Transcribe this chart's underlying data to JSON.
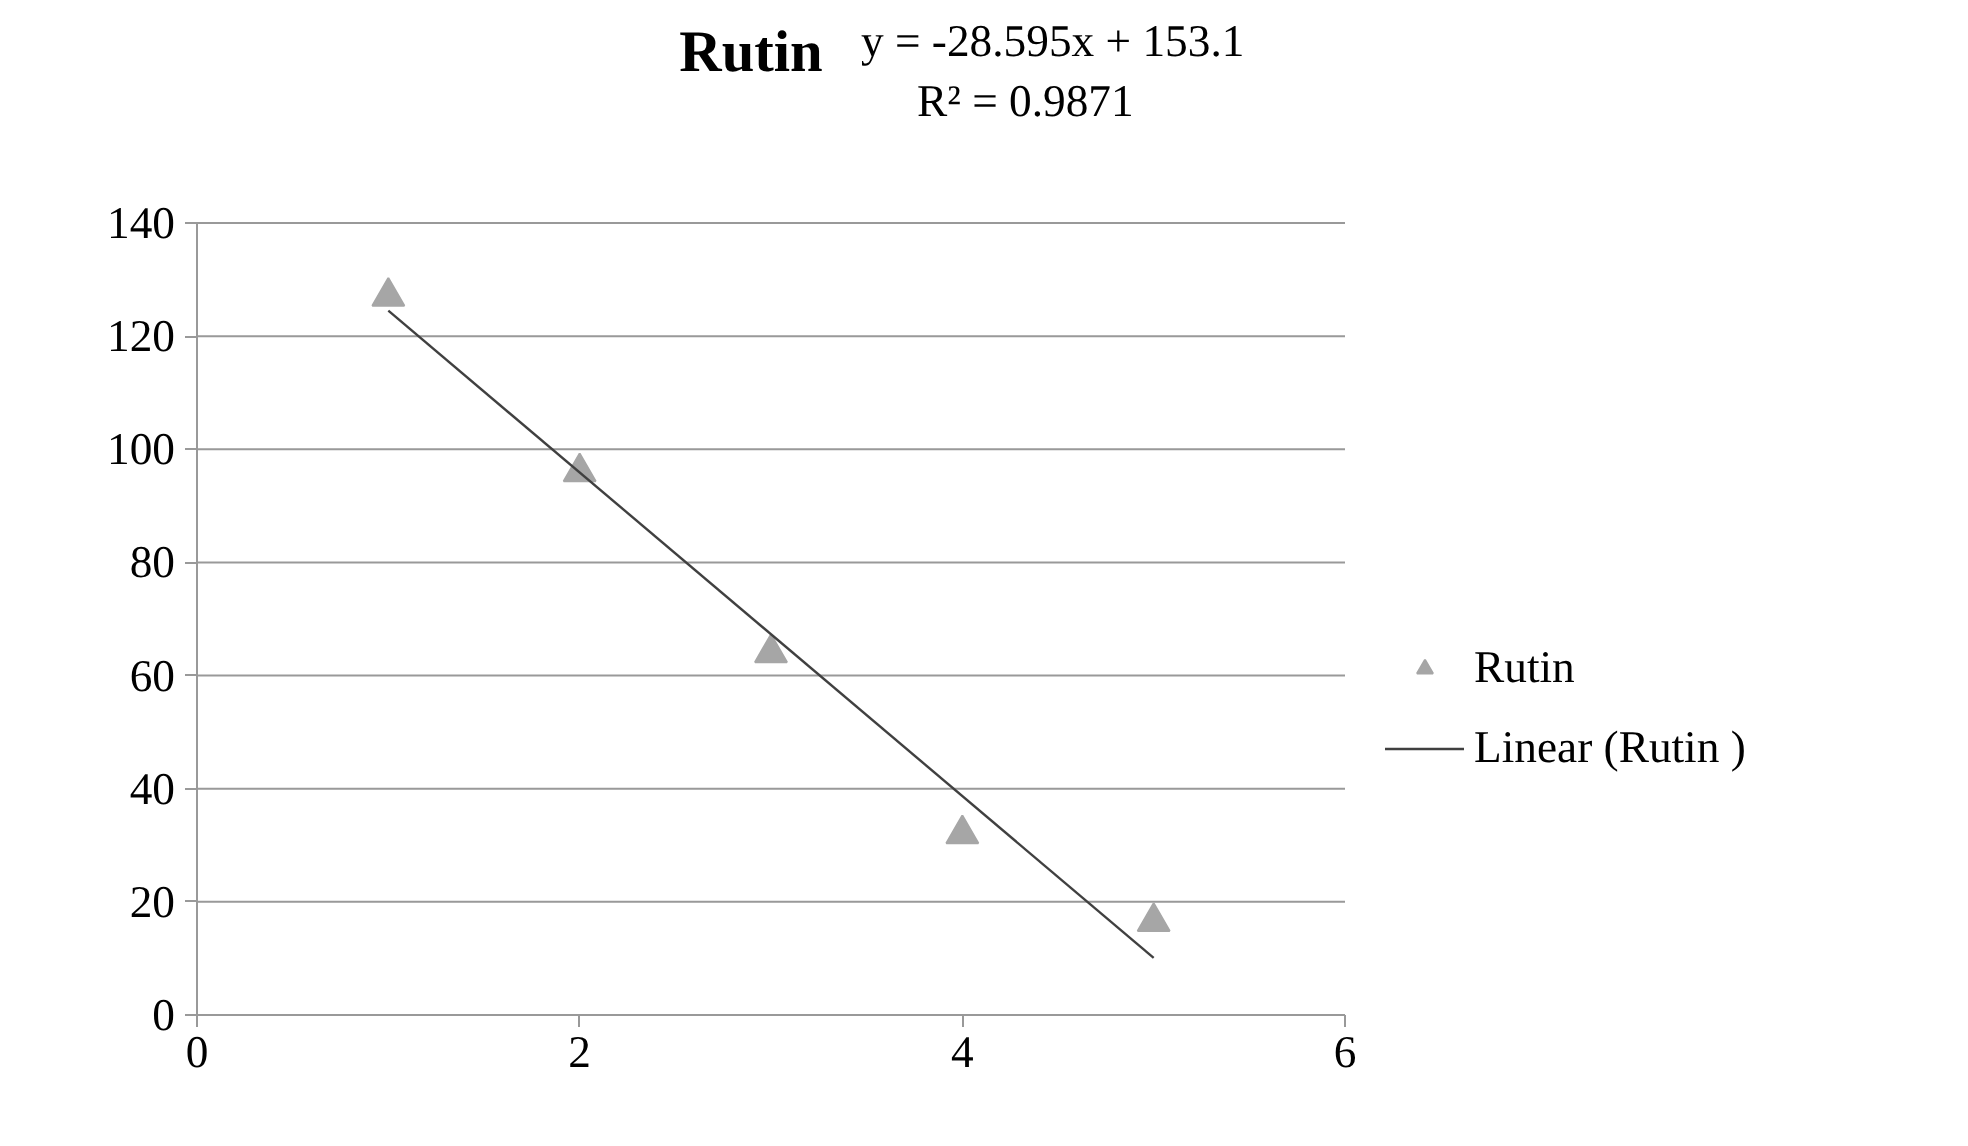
{
  "chart_data": {
    "type": "scatter",
    "title": "Rutin",
    "annotations": [
      "y = -28.595x + 153.1",
      "R² = 0.9871"
    ],
    "xlim": [
      0,
      6
    ],
    "xticks": [
      0,
      2,
      4,
      6
    ],
    "ylim": [
      0,
      140
    ],
    "yticks": [
      0,
      20,
      40,
      60,
      80,
      100,
      120,
      140
    ],
    "grid": "y",
    "legend": "right",
    "series": [
      {
        "name": "Rutin",
        "marker": "triangle",
        "color": "#a6a6a6",
        "x": [
          1,
          2,
          3,
          4,
          5
        ],
        "values": [
          127,
          96,
          64,
          32,
          16.5
        ]
      },
      {
        "name": "Linear (Rutin )",
        "type": "line",
        "line_style": "solid",
        "color": "#404040",
        "x": [
          1,
          5
        ],
        "values": [
          124.5,
          10.1
        ]
      }
    ]
  }
}
